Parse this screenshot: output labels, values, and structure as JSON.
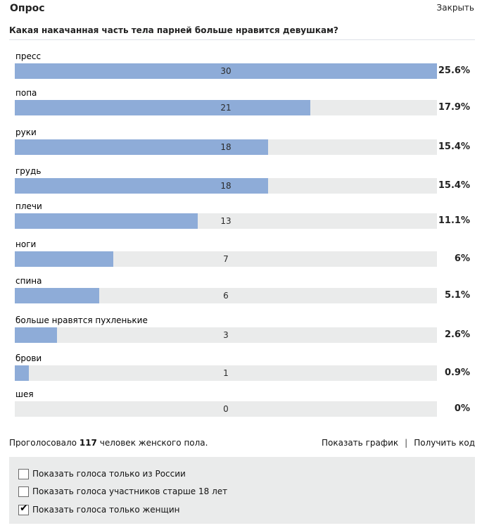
{
  "header": {
    "title": "Опрос",
    "close_label": "Закрыть"
  },
  "question": "Какая накачанная часть тела парней больше нравится девушкам?",
  "max_votes": 30,
  "options": [
    {
      "label": "пресс",
      "count": "30",
      "percent": "25.6%"
    },
    {
      "label": "попа",
      "count": "21",
      "percent": "17.9%"
    },
    {
      "label": "руки",
      "count": "18",
      "percent": "15.4%"
    },
    {
      "label": "грудь",
      "count": "18",
      "percent": "15.4%"
    },
    {
      "label": "плечи",
      "count": "13",
      "percent": "11.1%"
    },
    {
      "label": "ноги",
      "count": "7",
      "percent": "6%"
    },
    {
      "label": "спина",
      "count": "6",
      "percent": "5.1%"
    },
    {
      "label": "больше нравятся пухленькие",
      "count": "3",
      "percent": "2.6%"
    },
    {
      "label": "брови",
      "count": "1",
      "percent": "0.9%"
    },
    {
      "label": "шея",
      "count": "0",
      "percent": "0%"
    }
  ],
  "summary": {
    "prefix": "Проголосовало",
    "total": "117",
    "suffix": "человек женского пола."
  },
  "links": {
    "show_chart": "Показать график",
    "separator": "|",
    "get_code": "Получить код"
  },
  "filters": [
    {
      "label": "Показать голоса только из России",
      "checked": false
    },
    {
      "label": "Показать голоса участников старше 18 лет",
      "checked": false
    },
    {
      "label": "Показать голоса только женщин",
      "checked": true
    }
  ],
  "colors": {
    "bar_fill": "#8eacd8",
    "bar_track": "#eaebeb",
    "panel": "#eaebeb"
  }
}
